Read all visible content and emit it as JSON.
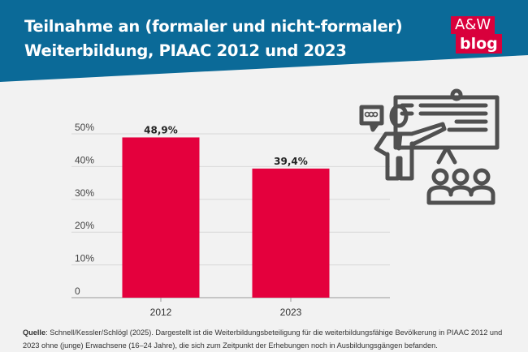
{
  "header": {
    "title_line1": "Teilnahme an (formaler und nicht-formaler)",
    "title_line2": "Weiterbildung, PIAAC 2012 und 2023",
    "bg_color": "#0b6a98"
  },
  "logo": {
    "line1": "A&W",
    "line2": "blog",
    "color": "#d9003c"
  },
  "chart_data": {
    "type": "bar",
    "categories": [
      "2012",
      "2023"
    ],
    "values": [
      48.9,
      39.4
    ],
    "data_labels": [
      "48,9%",
      "39,4%"
    ],
    "yticks": [
      "0",
      "10%",
      "20%",
      "30%",
      "40%",
      "50%"
    ],
    "ylim": [
      0,
      50
    ],
    "grid": true,
    "bar_color": "#e4003d"
  },
  "illustration": "presentation-teacher-audience-icon",
  "source": {
    "label": "Quelle",
    "text": ": Schnell/Kessler/Schlögl (2025). Dargestellt ist die Weiterbildungsbeteiligung für die weiterbildungsfähige Bevölkerung in PIAAC 2012 und 2023 ohne (junge) Erwachsene (16–24 Jahre), die sich zum Zeitpunkt der Erhebungen noch in Ausbildungsgängen befanden."
  }
}
